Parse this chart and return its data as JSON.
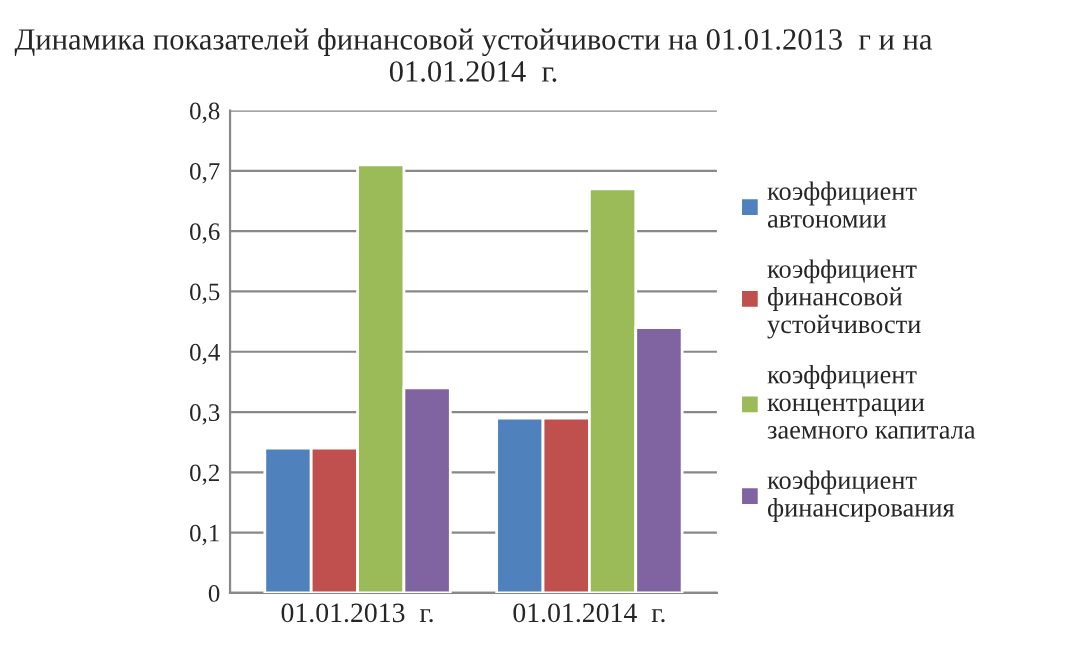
{
  "chart_data": {
    "type": "bar",
    "title": "Динамика показателей финансовой устойчивости на 01.01.2013  г и на 01.01.2014  г.",
    "categories": [
      "01.01.2013  г.",
      "01.01.2014  г."
    ],
    "series": [
      {
        "name": "коэффициент автономии",
        "color": "#4f81bd",
        "values": [
          0.24,
          0.29
        ]
      },
      {
        "name": "коэффициент финансовой устойчивости",
        "color": "#c0504d",
        "values": [
          0.24,
          0.29
        ]
      },
      {
        "name": "коэффициент концентрации заемного капитала",
        "color": "#9bbb59",
        "values": [
          0.71,
          0.67
        ]
      },
      {
        "name": "коэффициент финансирования",
        "color": "#8064a2",
        "values": [
          0.34,
          0.44
        ]
      }
    ],
    "ylim": [
      0,
      0.8
    ],
    "yticks": [
      {
        "value": 0,
        "label": "0"
      },
      {
        "value": 0.1,
        "label": "0,1"
      },
      {
        "value": 0.2,
        "label": "0,2"
      },
      {
        "value": 0.3,
        "label": "0,3"
      },
      {
        "value": 0.4,
        "label": "0,4"
      },
      {
        "value": 0.5,
        "label": "0,5"
      },
      {
        "value": 0.6,
        "label": "0,6"
      },
      {
        "value": 0.7,
        "label": "0,7"
      },
      {
        "value": 0.8,
        "label": "0,8"
      }
    ],
    "grid": "y",
    "legend": "right"
  }
}
